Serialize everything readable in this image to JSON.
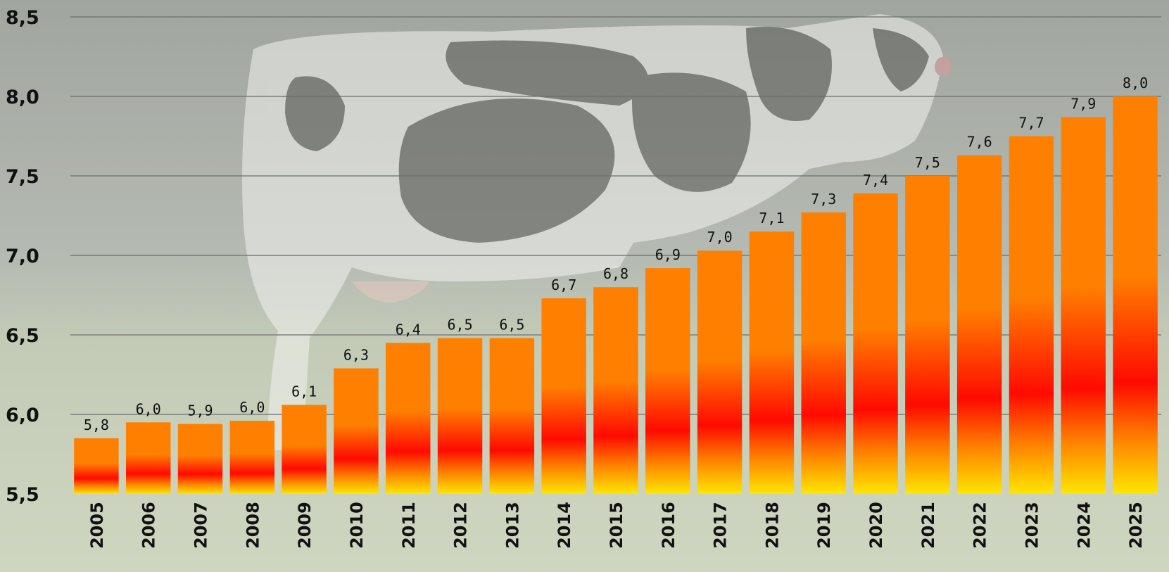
{
  "chart_data": {
    "type": "bar",
    "categories": [
      "2005",
      "2006",
      "2007",
      "2008",
      "2009",
      "2010",
      "2011",
      "2012",
      "2013",
      "2014",
      "2015",
      "2016",
      "2017",
      "2018",
      "2019",
      "2020",
      "2021",
      "2022",
      "2023",
      "2024",
      "2025"
    ],
    "values": [
      5.85,
      5.95,
      5.94,
      5.96,
      6.06,
      6.29,
      6.45,
      6.48,
      6.48,
      6.73,
      6.8,
      6.92,
      7.03,
      7.15,
      7.27,
      7.39,
      7.5,
      7.63,
      7.75,
      7.87,
      8.0
    ],
    "data_labels": [
      "5,8",
      "6,0",
      "5,9",
      "6,0",
      "6,1",
      "6,3",
      "6,4",
      "6,5",
      "6,5",
      "6,7",
      "6,8",
      "6,9",
      "7,0",
      "7,1",
      "7,3",
      "7,4",
      "7,5",
      "7,6",
      "7,7",
      "7,9",
      "8,0"
    ],
    "y_ticks": [
      5.5,
      6.0,
      6.5,
      7.0,
      7.5,
      8.0,
      8.5
    ],
    "y_tick_labels": [
      "5,5",
      "6,0",
      "6,5",
      "7,0",
      "7,5",
      "8,0",
      "8,5"
    ],
    "ylim": [
      5.5,
      8.5
    ],
    "grid": true,
    "title": "",
    "xlabel": "",
    "ylabel": "",
    "colors": {
      "bar_top": "#ff8000",
      "bar_mid": "#ff0a00",
      "bar_bottom": "#ffe600",
      "background_sky": "#9ea29c",
      "background_grass": "#c7d0b6"
    },
    "background_image": "cow-in-meadow"
  }
}
